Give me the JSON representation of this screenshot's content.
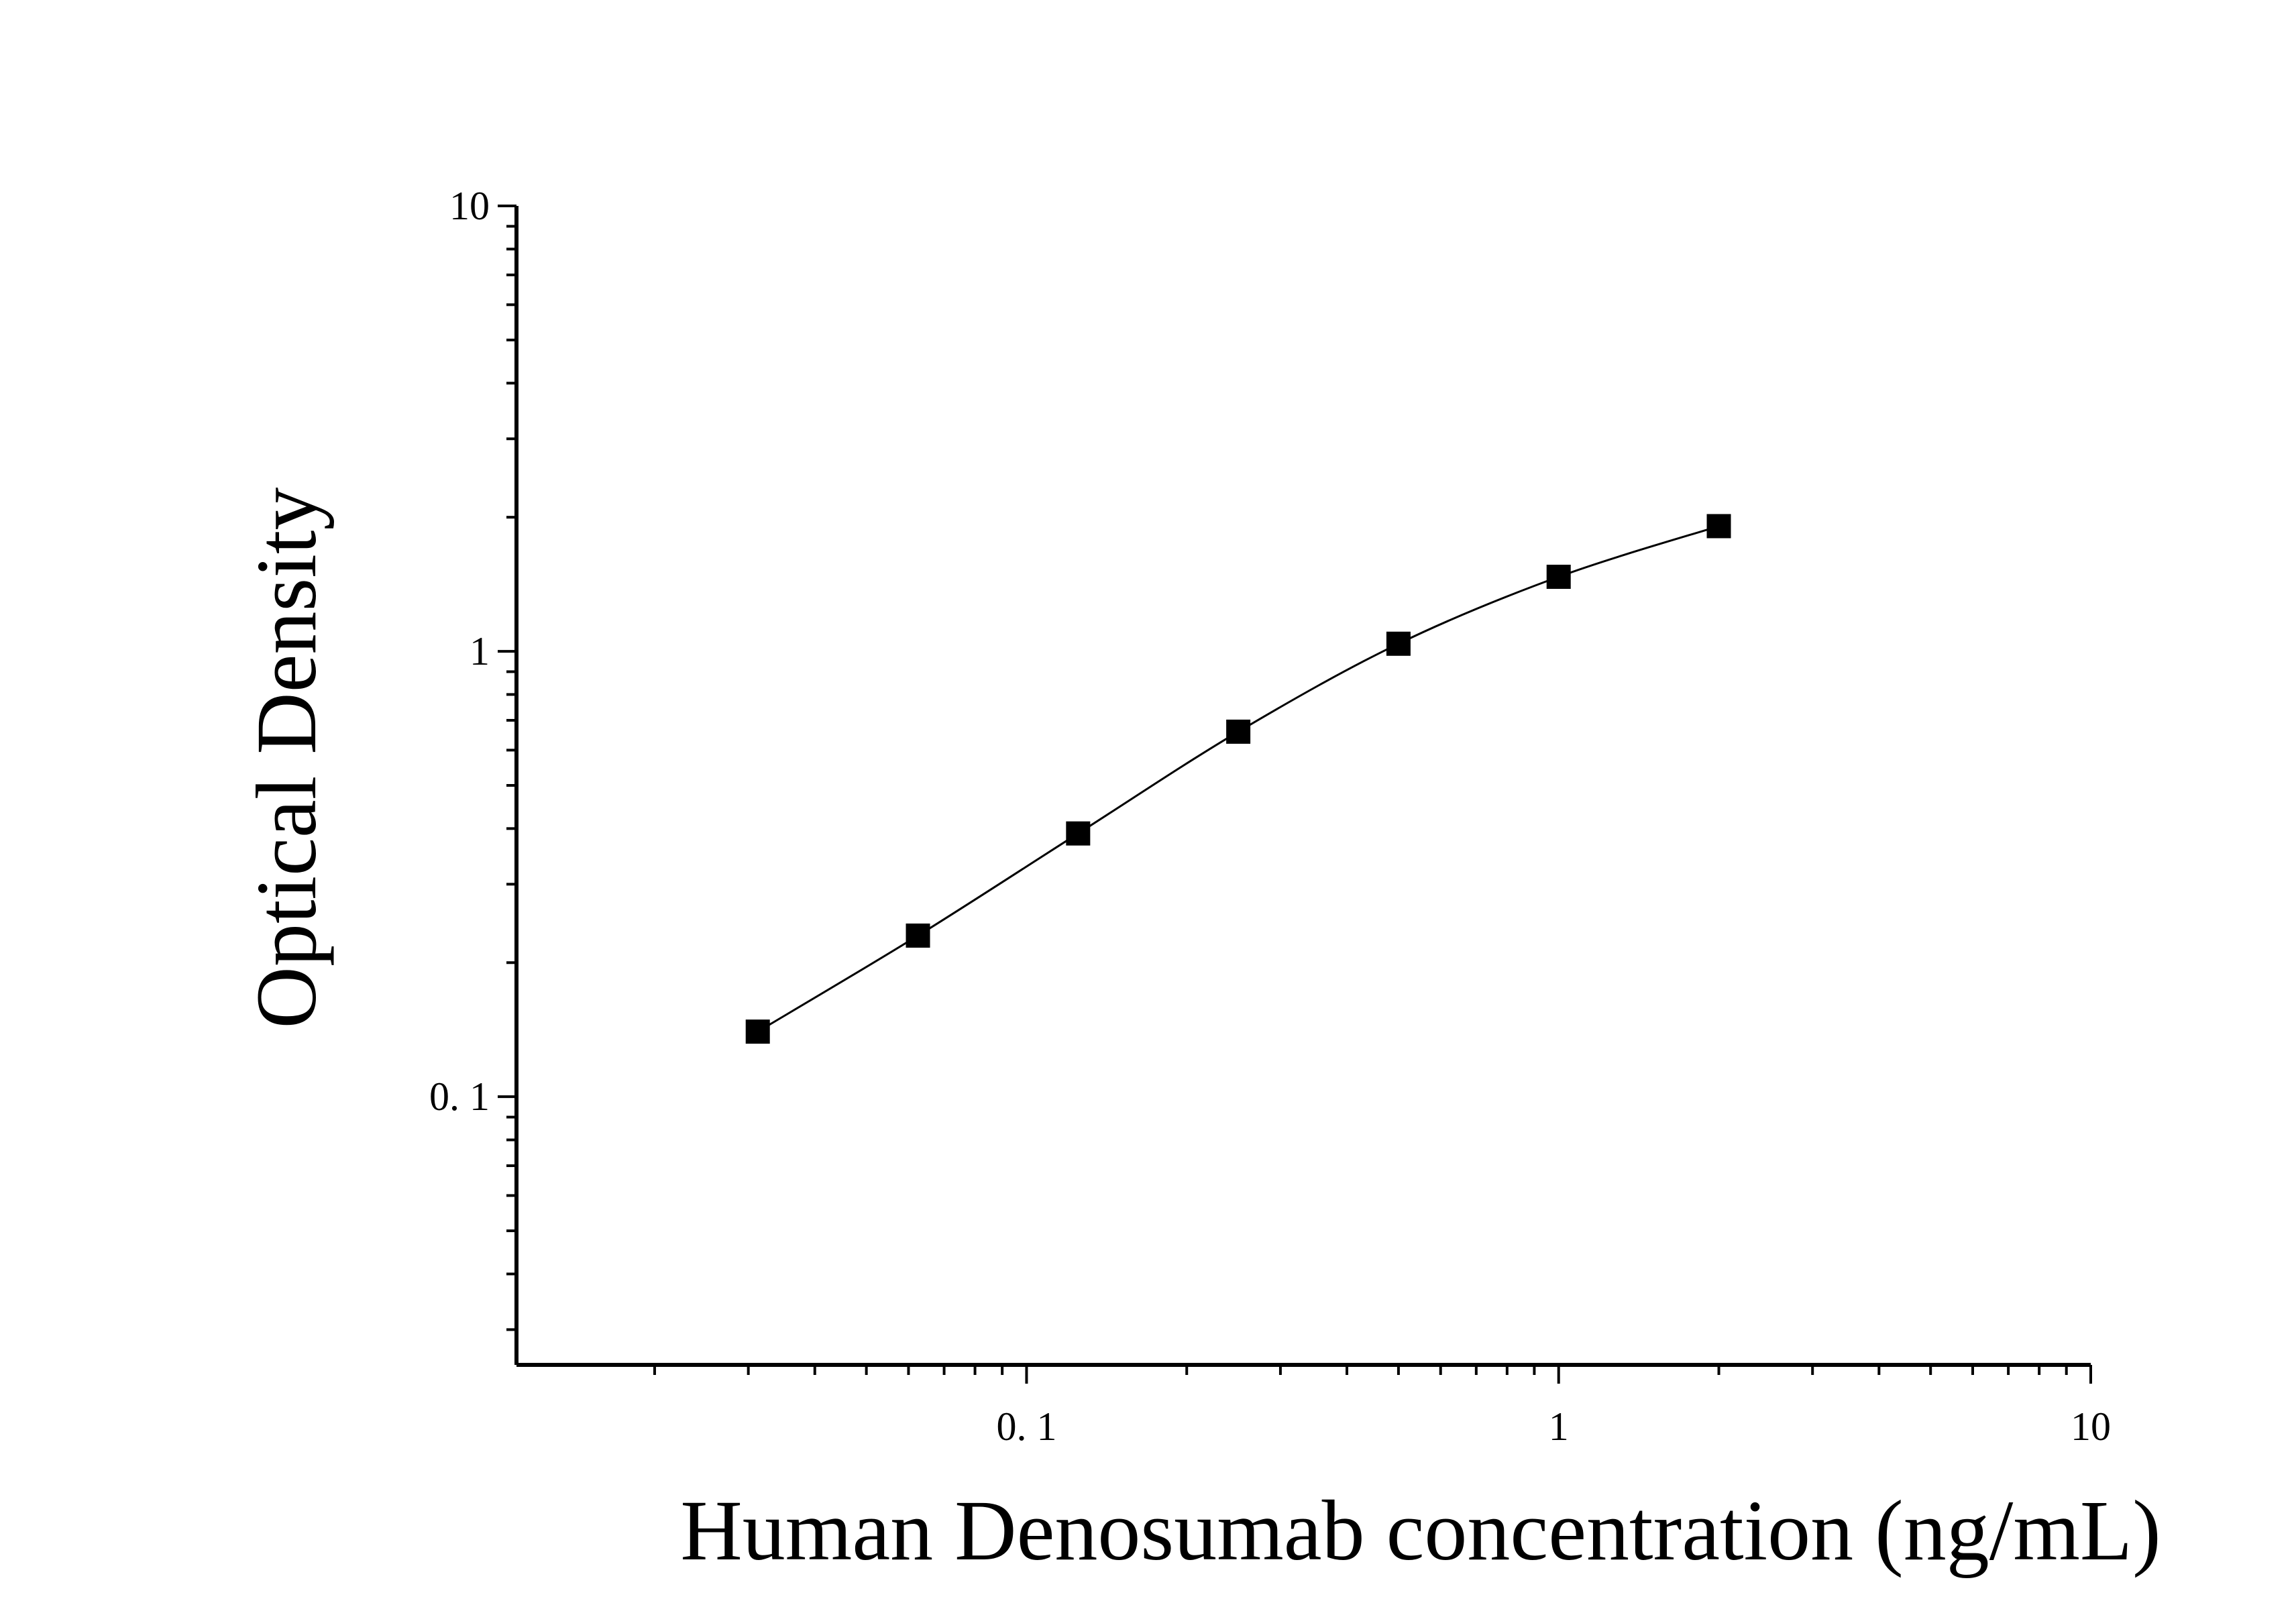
{
  "chart_data": {
    "type": "scatter",
    "title": "",
    "xlabel": "Human Denosumab concentration (ng/mL)",
    "ylabel": "Optical Density",
    "xscale": "log",
    "yscale": "log",
    "xlim": [
      0.011,
      10
    ],
    "ylim": [
      0.025,
      10
    ],
    "x_ticks": [
      {
        "value": 0.1,
        "label": "0. 1"
      },
      {
        "value": 1,
        "label": "1"
      },
      {
        "value": 10,
        "label": "10"
      }
    ],
    "y_ticks": [
      {
        "value": 0.1,
        "label": "0. 1"
      },
      {
        "value": 1,
        "label": "1"
      },
      {
        "value": 10,
        "label": "10"
      }
    ],
    "grid": false,
    "legend": "none",
    "series": [
      {
        "marker": "square",
        "color": "#000000",
        "fit_line": true,
        "points": [
          {
            "x": 0.03125,
            "y": 0.14
          },
          {
            "x": 0.0625,
            "y": 0.23
          },
          {
            "x": 0.125,
            "y": 0.39
          },
          {
            "x": 0.25,
            "y": 0.66
          },
          {
            "x": 0.5,
            "y": 1.04
          },
          {
            "x": 1,
            "y": 1.47
          },
          {
            "x": 2,
            "y": 1.91
          }
        ]
      }
    ]
  }
}
